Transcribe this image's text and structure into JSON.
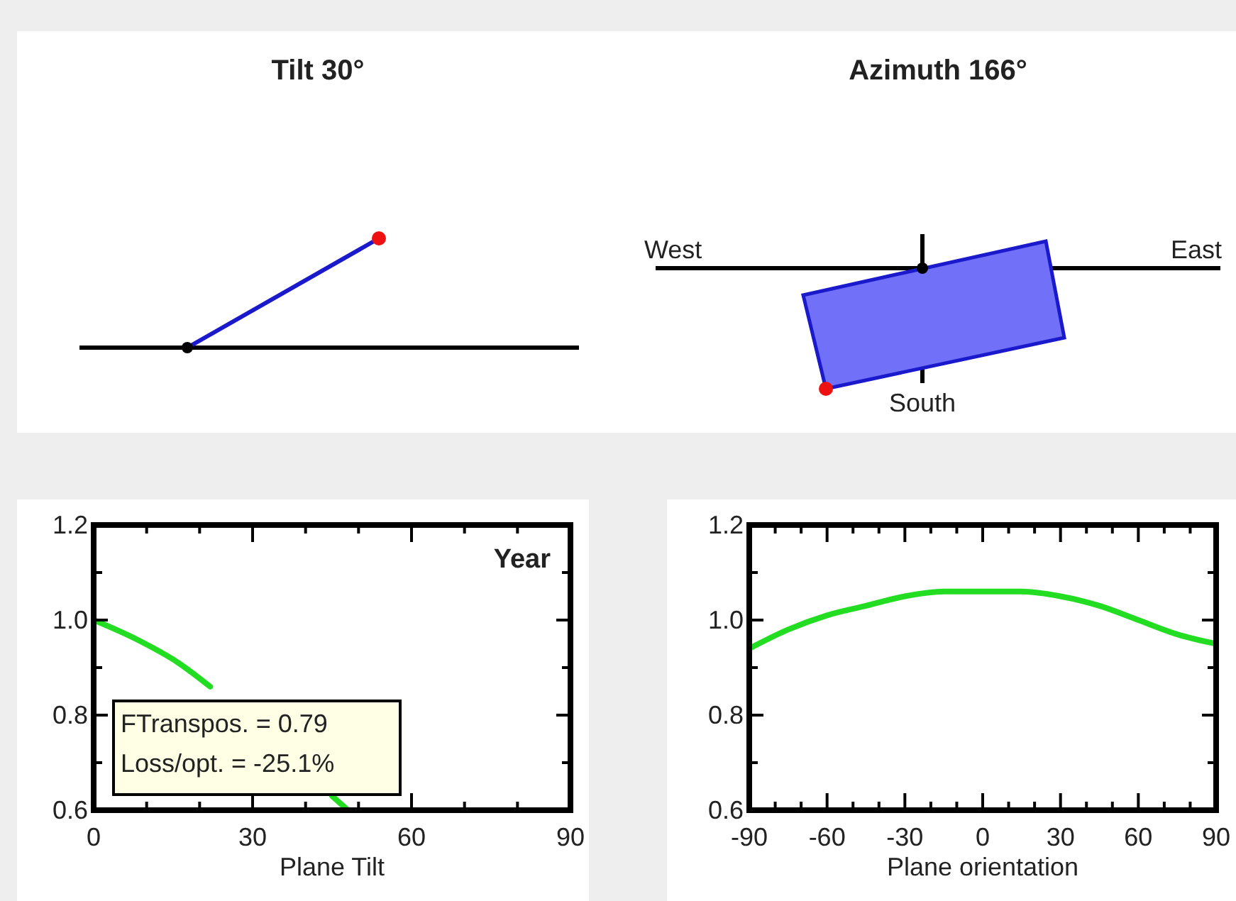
{
  "chart_data": [
    {
      "type": "other",
      "title": "Tilt 30°"
    },
    {
      "type": "other",
      "title": "Azimuth 166°",
      "annotations": [
        "West",
        "East",
        "South"
      ]
    },
    {
      "type": "line",
      "xlabel": "Plane Tilt",
      "xlim": [
        0,
        90
      ],
      "ylim": [
        0.6,
        1.2
      ],
      "xticks": [
        0,
        30,
        60,
        90
      ],
      "yticks": [
        {
          "value": 0.6,
          "label": "0.6"
        },
        {
          "value": 0.8,
          "label": "0.8"
        },
        {
          "value": 1.0,
          "label": "1.0"
        },
        {
          "value": 1.2,
          "label": "1.2"
        }
      ],
      "annotations": [
        "Year",
        "FTranspos. = 0.79",
        "Loss/opt. = -25.1%"
      ],
      "series": [
        {
          "color": "#22dd22",
          "x": [
            0,
            8,
            16,
            22,
            34,
            45,
            48
          ],
          "values": [
            1.0,
            0.96,
            0.91,
            0.86,
            null,
            0.63,
            0.6
          ]
        }
      ]
    },
    {
      "type": "line",
      "xlabel": "Plane orientation",
      "xlim": [
        -90,
        90
      ],
      "ylim": [
        0.6,
        1.2
      ],
      "xticks": [
        -90,
        -60,
        -30,
        0,
        30,
        60,
        90
      ],
      "yticks": [
        {
          "value": 0.6,
          "label": "0.6"
        },
        {
          "value": 0.8,
          "label": "0.8"
        },
        {
          "value": 1.0,
          "label": "1.0"
        },
        {
          "value": 1.2,
          "label": "1.2"
        }
      ],
      "series": [
        {
          "color": "#22dd22",
          "x": [
            -90,
            -75,
            -60,
            -45,
            -30,
            -15,
            0,
            15,
            30,
            45,
            60,
            75,
            90
          ],
          "values": [
            0.94,
            0.98,
            1.01,
            1.03,
            1.05,
            1.06,
            1.06,
            1.06,
            1.05,
            1.03,
            1.0,
            0.97,
            0.95
          ]
        }
      ]
    }
  ]
}
